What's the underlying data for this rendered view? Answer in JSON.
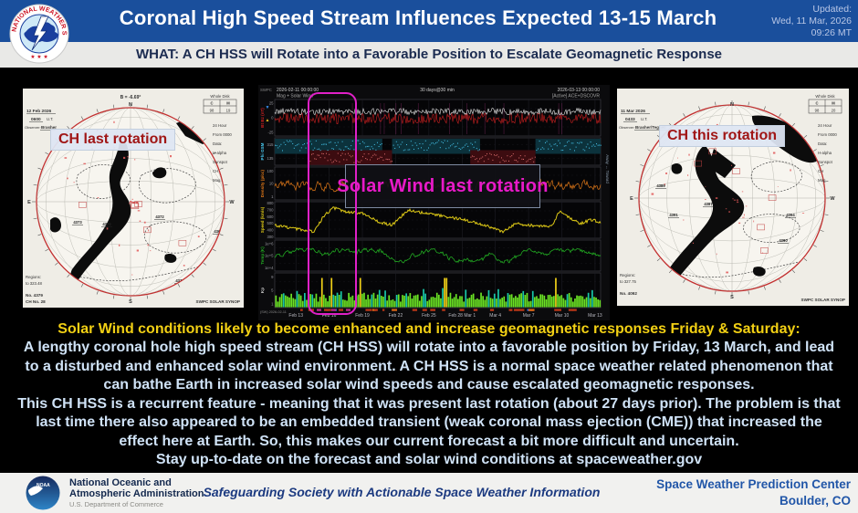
{
  "header": {
    "title": "Coronal High Speed Stream Influences Expected 13-15 March",
    "updated_label": "Updated:",
    "updated_date": "Wed, 11 Mar, 2026",
    "updated_time": "09:26 MT",
    "subtitle": "WHAT: A CH HSS will Rotate into a Favorable Position to Escalate Geomagnetic Response",
    "nws_ring_text": "NATIONAL WEATHER SERVICE",
    "nws_stars": "★ ★ ★",
    "colors": {
      "header_bg": "#1a4f9c",
      "subtitle_bg": "#e9e9e7",
      "accent_magenta": "#e020c8",
      "headline_yellow": "#f2d014",
      "body_text": "#cfe2f6",
      "map_label_red": "#a01616"
    }
  },
  "maps": {
    "left": {
      "label": "CH last rotation",
      "b_angle": "B = -6.69°",
      "compass": {
        "n": "N",
        "s": "S",
        "e": "E",
        "w": "W"
      },
      "date": "12 Feb 2026",
      "time": "0600",
      "ut": "U.T.",
      "observer_label": "Observer:",
      "observer": "Brasher",
      "table": {
        "header": "Whole Disk",
        "cols": [
          "C",
          "M"
        ],
        "vals": [
          "98",
          "19"
        ]
      },
      "side_items": [
        "24 Hour",
        "From 0000",
        "Data:",
        "H-alpha",
        "Sunspot",
        "CH",
        "Mag."
      ],
      "regions": [
        "4373",
        "4374",
        "4372",
        "4367",
        "4369",
        "4371"
      ],
      "bottom_items": [
        "Regions:",
        "to 323.48"
      ],
      "drawn_no": "No. 4379",
      "ch_no": "CH No. 28",
      "credit": "SWPC SOLAR SYNOP"
    },
    "right": {
      "label": "CH this rotation",
      "b_angle": "",
      "compass": {
        "n": "N",
        "s": "S",
        "e": "E",
        "w": "W"
      },
      "date": "11 Mar 2026",
      "time": "0433",
      "ut": "U.T.",
      "observer_label": "Observer:",
      "observer": "Brasher/Tegnell",
      "table": {
        "header": "Whole Disk",
        "cols": [
          "C",
          "M"
        ],
        "vals": [
          "98",
          "20"
        ]
      },
      "side_items": [
        "24 Hour",
        "From 0000",
        "Data:",
        "H-alpha",
        "Sunspot",
        "CH",
        "Mag."
      ],
      "regions": [
        "4389",
        "4387",
        "4391",
        "4394",
        "4390",
        "4381"
      ],
      "bottom_items": [
        "Regions:",
        "to 327.75"
      ],
      "drawn_no": "No. 4092",
      "ch_no": "",
      "credit": "SWPC SOLAR SYNOP"
    }
  },
  "chart_data": {
    "type": "line",
    "title": "Mag + Solar Wind",
    "start": "2026-02-11 00:00:00",
    "end": "2026-03-13 00:00:00",
    "cadence": "30 days@30 min",
    "source": "[Active] ACE+DSCOVR",
    "corner": "SWPC",
    "bottom_corner": "(SW) 2026-02-11",
    "overlay_label": "Solar Wind last rotation",
    "right_label": "Away ↔ Toward",
    "x_ticks": [
      "Feb 13",
      "Feb 16",
      "Feb 19",
      "Feb 22",
      "Feb 25",
      "Feb 28 Mar 1",
      "Mar 4",
      "Mar 7",
      "Mar 10",
      "Mar 13"
    ],
    "highlight_band": [
      0.106,
      0.244
    ],
    "panels": [
      {
        "id": "mag",
        "label": "Bt Bz (nT)",
        "yticks": [
          "25",
          "0",
          "-25"
        ],
        "colors": [
          "#e8e8e8",
          "#cc2020"
        ]
      },
      {
        "id": "phi",
        "label": "Phi GSM",
        "yticks": [
          "315",
          "135"
        ],
        "toward_color": "#48c8f0",
        "away_color": "#e07070",
        "toward_bands": [
          [
            0,
            0.33
          ],
          [
            0.36,
            0.63
          ],
          [
            0.8,
            1
          ]
        ],
        "away_bands": [
          [
            0.1,
            0.36
          ],
          [
            0.6,
            0.8
          ]
        ]
      },
      {
        "id": "density",
        "label": "Density (p/cc)",
        "yticks": [
          "100",
          "10",
          "1"
        ],
        "color": "#e07818"
      },
      {
        "id": "speed",
        "label": "Speed (km/s)",
        "yticks": [
          "800",
          "700",
          "600",
          "500",
          "400",
          "300"
        ],
        "color": "#ddc816",
        "range": [
          300,
          800
        ],
        "keypoints": [
          [
            0,
            480
          ],
          [
            0.08,
            420
          ],
          [
            0.12,
            390
          ],
          [
            0.15,
            600
          ],
          [
            0.18,
            720
          ],
          [
            0.22,
            660
          ],
          [
            0.27,
            640
          ],
          [
            0.32,
            520
          ],
          [
            0.36,
            480
          ],
          [
            0.41,
            690
          ],
          [
            0.45,
            650
          ],
          [
            0.52,
            600
          ],
          [
            0.58,
            555
          ],
          [
            0.65,
            470
          ],
          [
            0.7,
            385
          ],
          [
            0.74,
            500
          ],
          [
            0.8,
            470
          ],
          [
            0.85,
            465
          ],
          [
            0.875,
            680
          ],
          [
            0.91,
            560
          ],
          [
            0.94,
            500
          ],
          [
            0.97,
            555
          ],
          [
            1,
            520
          ]
        ]
      },
      {
        "id": "temp",
        "label": "Temp (K)",
        "yticks": [
          "1e+6",
          "1e+5",
          "1e+4"
        ],
        "color": "#22aa22"
      },
      {
        "id": "kp",
        "label": "Kp",
        "yticks": [
          "9",
          "5",
          "1"
        ],
        "colors": {
          "normal": "#6ae224",
          "mid": "#18c8a8",
          "high": "#f0d018"
        },
        "high_marks": [
          0.14,
          0.17,
          0.26,
          0.52,
          0.86
        ]
      }
    ]
  },
  "body": {
    "headline": "Solar Wind conditions likely to become enhanced and increase geomagnetic responses Friday & Saturday:",
    "p1": "A lengthy coronal hole high speed stream (CH HSS) will rotate into a favorable position by Friday, 13 March, and lead to a disturbed and enhanced solar wind environment. A CH HSS is a normal space weather related phenomenon that can bathe Earth in increased solar wind speeds and cause escalated geomagnetic responses.",
    "p2": "This CH HSS is a recurrent feature - meaning that it was present last rotation (about 27 days prior). The problem is that last time there also appeared to be an embedded transient (weak coronal mass ejection (CME)) that increased the effect here at Earth. So, this makes our current forecast a bit more difficult and uncertain.",
    "p3": "Stay up-to-date on the forecast and solar wind conditions at spaceweather.gov"
  },
  "footer": {
    "noaa_abbr": "NOAA",
    "noaa_line1": "National Oceanic and",
    "noaa_line2": "Atmospheric Administration",
    "noaa_line3": "U.S. Department of Commerce",
    "tagline": "Safeguarding Society with Actionable Space Weather Information",
    "org_line1": "Space Weather Prediction Center",
    "org_line2": "Boulder, CO"
  }
}
